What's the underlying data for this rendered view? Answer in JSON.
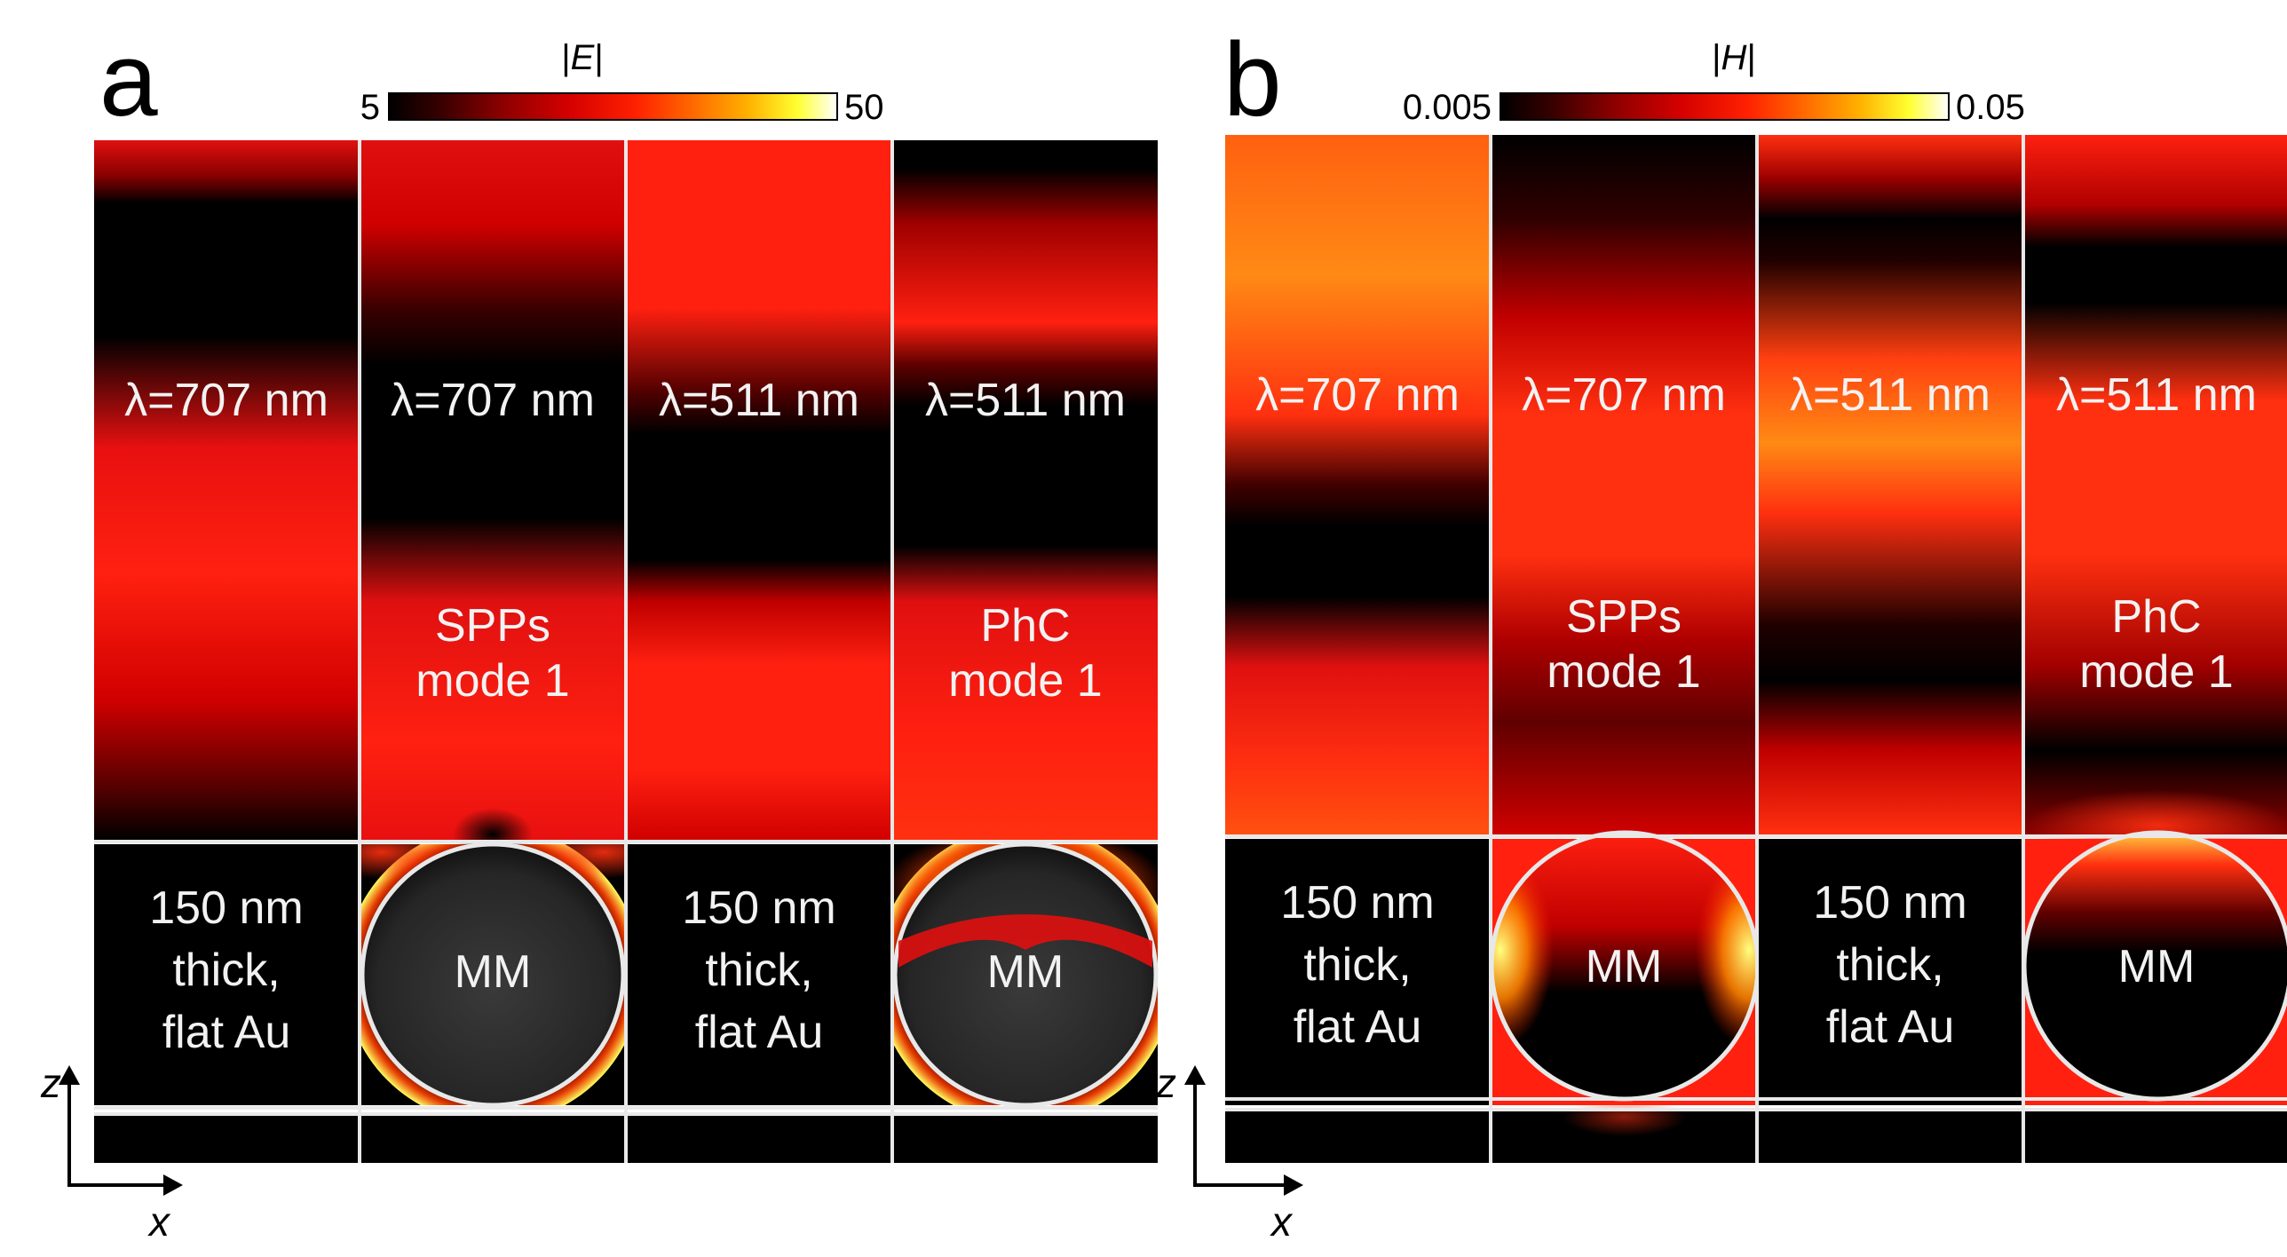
{
  "colormap": [
    "#000000",
    "#3a0000",
    "#8b0000",
    "#d40000",
    "#ff2000",
    "#ff6a00",
    "#ffb000",
    "#ffff30",
    "#ffffff"
  ],
  "axes": {
    "vertical": "z",
    "horizontal": "x"
  },
  "panels": [
    {
      "letter": "a",
      "colorbar": {
        "label_prefix": "|",
        "label_var": "E",
        "label_suffix": "|",
        "min": "5",
        "max": "50"
      },
      "columns": [
        {
          "wavelength": "λ=707 nm",
          "mode_line1": "",
          "mode_line2": "",
          "lower_type": "flat",
          "lower_line1": "150 nm",
          "lower_line2": "thick,",
          "lower_line3": "flat Au"
        },
        {
          "wavelength": "λ=707 nm",
          "mode_line1": "SPPs",
          "mode_line2": "mode 1",
          "lower_type": "sphere",
          "lower_label": "MM"
        },
        {
          "wavelength": "λ=511 nm",
          "mode_line1": "",
          "mode_line2": "",
          "lower_type": "flat",
          "lower_line1": "150 nm",
          "lower_line2": "thick,",
          "lower_line3": "flat Au"
        },
        {
          "wavelength": "λ=511 nm",
          "mode_line1": "PhC",
          "mode_line2": "mode 1",
          "lower_type": "sphere",
          "lower_label": "MM"
        }
      ]
    },
    {
      "letter": "b",
      "colorbar": {
        "label_prefix": "|",
        "label_var": "H",
        "label_suffix": "|",
        "min": "0.005",
        "max": "0.05"
      },
      "columns": [
        {
          "wavelength": "λ=707 nm",
          "mode_line1": "",
          "mode_line2": "",
          "lower_type": "flat",
          "lower_line1": "150 nm",
          "lower_line2": "thick,",
          "lower_line3": "flat Au"
        },
        {
          "wavelength": "λ=707 nm",
          "mode_line1": "SPPs",
          "mode_line2": "mode 1",
          "lower_type": "sphere",
          "lower_label": "MM"
        },
        {
          "wavelength": "λ=511 nm",
          "mode_line1": "",
          "mode_line2": "",
          "lower_type": "flat",
          "lower_line1": "150 nm",
          "lower_line2": "thick,",
          "lower_line3": "flat Au"
        },
        {
          "wavelength": "λ=511 nm",
          "mode_line1": "PhC",
          "mode_line2": "mode 1",
          "lower_type": "sphere",
          "lower_label": "MM"
        }
      ]
    }
  ]
}
